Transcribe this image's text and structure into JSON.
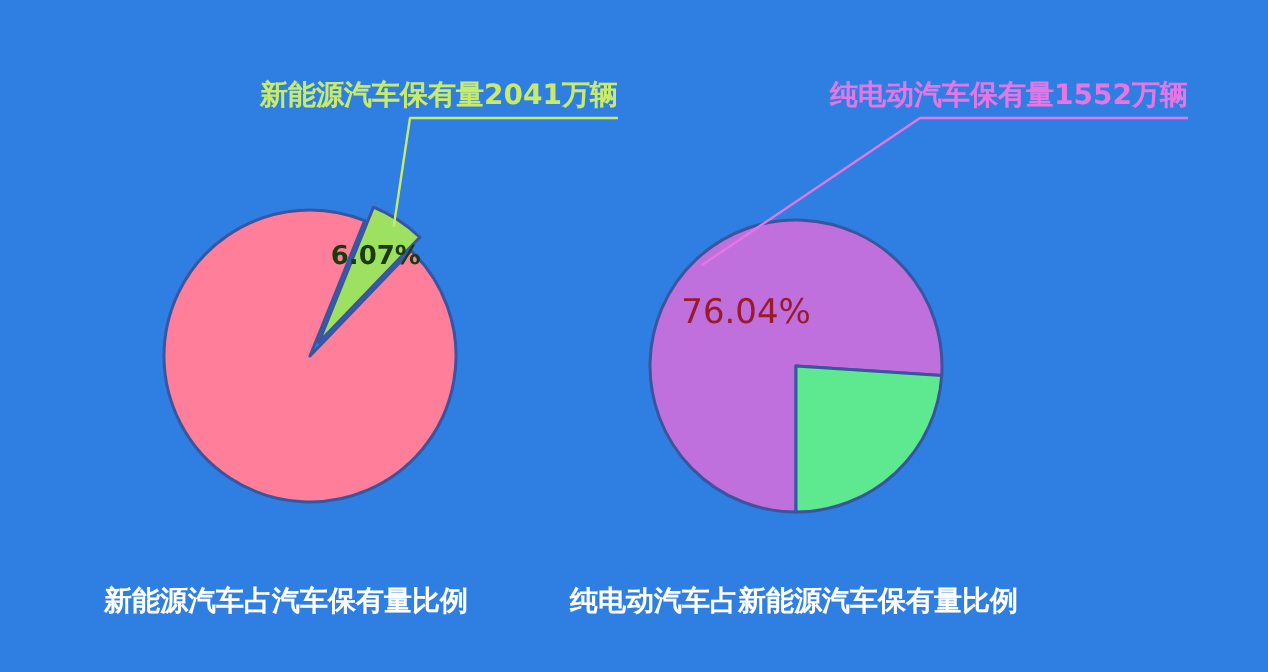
{
  "chart_data": [
    {
      "type": "pie",
      "title": "新能源汽车占汽车保有量比例",
      "categories": [
        null,
        null
      ],
      "values": [
        6.07,
        93.93
      ],
      "colors": [
        "#9ee060",
        "#ff7f9a"
      ],
      "value_labels": [
        "6.07%",
        null
      ],
      "annotations": [
        "新能源汽车保有量2041万辆"
      ]
    },
    {
      "type": "pie",
      "title": "纯电动汽车占新能源汽车保有量比例",
      "categories": [
        null,
        null
      ],
      "values": [
        76.04,
        23.96
      ],
      "colors": [
        "#c070dc",
        "#5ee890"
      ],
      "value_labels": [
        "76.04%",
        null
      ],
      "annotations": [
        "纯电动汽车保有量1552万辆"
      ]
    }
  ]
}
